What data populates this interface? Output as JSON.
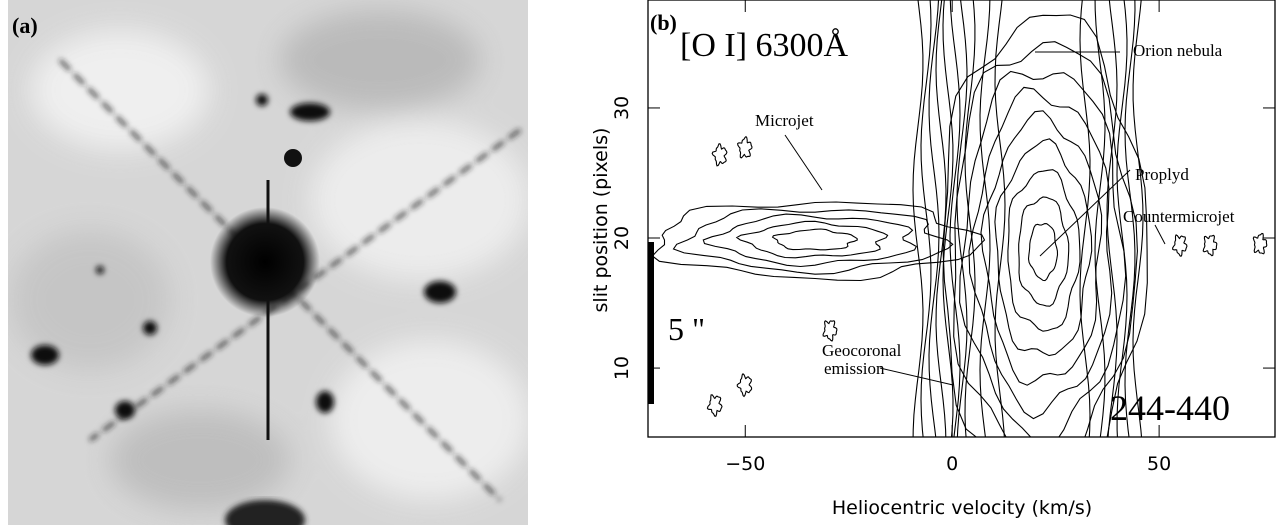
{
  "panel_a": {
    "label": "(a)"
  },
  "panel_b": {
    "label": "(b)",
    "line": "[O I] 6300Å",
    "annotations": {
      "orion_nebula": "Orion nebula",
      "microjet": "Microjet",
      "proplyd": "Proplyd",
      "countermicrojet": "Countermicrojet",
      "geocoronal": [
        "Geocoronal",
        "emission"
      ]
    },
    "scale_bar": "5 \"",
    "object": "244-440",
    "x_label": "Heliocentric velocity (km/s)",
    "y_label": "slit position (pixels)",
    "xlim": [
      -73.5,
      78
    ],
    "ylim": [
      4.7,
      38.3
    ],
    "xticks": [
      {
        "value": -50,
        "label": "−50"
      },
      0,
      50
    ],
    "yticks": [
      10,
      20,
      30
    ]
  }
}
